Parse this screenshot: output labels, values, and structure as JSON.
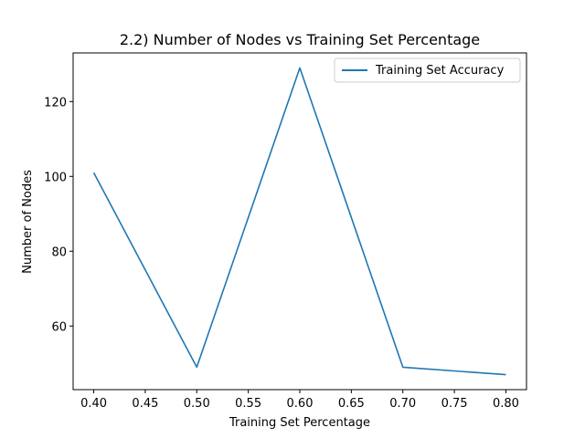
{
  "chart_data": {
    "type": "line",
    "title": "2.2) Number of Nodes vs Training Set Percentage",
    "xlabel": "Training Set Percentage",
    "ylabel": "Number of Nodes",
    "xlim": [
      0.38,
      0.82
    ],
    "ylim": [
      43,
      133
    ],
    "x_ticks": [
      0.4,
      0.45,
      0.5,
      0.55,
      0.6,
      0.65,
      0.7,
      0.75,
      0.8
    ],
    "x_tick_labels": [
      "0.40",
      "0.45",
      "0.50",
      "0.55",
      "0.60",
      "0.65",
      "0.70",
      "0.75",
      "0.80"
    ],
    "y_ticks": [
      60,
      80,
      100,
      120
    ],
    "y_tick_labels": [
      "60",
      "80",
      "100",
      "120"
    ],
    "grid": false,
    "legend_position": "top-right",
    "series": [
      {
        "name": "Training Set Accuracy",
        "color": "#1f77b4",
        "x": [
          0.4,
          0.5,
          0.6,
          0.7,
          0.8
        ],
        "y": [
          101,
          49,
          129,
          49,
          47
        ]
      }
    ]
  }
}
